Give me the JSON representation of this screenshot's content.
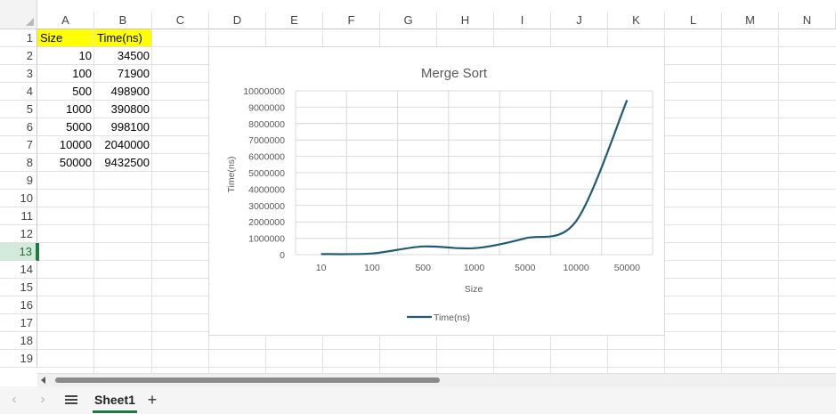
{
  "columns": [
    "A",
    "B",
    "C",
    "D",
    "E",
    "F",
    "G",
    "H",
    "I",
    "J",
    "K",
    "L",
    "M",
    "N"
  ],
  "rows": [
    "1",
    "2",
    "3",
    "4",
    "5",
    "6",
    "7",
    "8",
    "9",
    "10",
    "11",
    "12",
    "13",
    "14",
    "15",
    "16",
    "17",
    "18",
    "19"
  ],
  "selected_row": "13",
  "cells": {
    "A1": "Size",
    "B1": "Time(ns)",
    "A2": "10",
    "B2": "34500",
    "A3": "100",
    "B3": "71900",
    "A4": "500",
    "B4": "498900",
    "A5": "1000",
    "B5": "390800",
    "A6": "5000",
    "B6": "998100",
    "A7": "10000",
    "B7": "2040000",
    "A8": "50000",
    "B8": "9432500"
  },
  "colors": {
    "header_fill": "#ffff00",
    "series_line": "#1f5c73",
    "accent": "#1e7a45"
  },
  "chart_data": {
    "type": "line",
    "title": "Merge Sort",
    "xlabel": "Size",
    "ylabel": "Time(ns)",
    "categories": [
      "10",
      "100",
      "500",
      "1000",
      "5000",
      "10000",
      "50000"
    ],
    "series": [
      {
        "name": "Time(ns)",
        "values": [
          34500,
          71900,
          498900,
          390800,
          998100,
          2040000,
          9432500
        ]
      }
    ],
    "ylim": [
      0,
      10000000
    ],
    "yticks": [
      "0",
      "1000000",
      "2000000",
      "3000000",
      "4000000",
      "5000000",
      "6000000",
      "7000000",
      "8000000",
      "9000000",
      "10000000"
    ],
    "grid": true,
    "smooth": true,
    "legend": "bottom"
  },
  "sheets": [
    {
      "name": "Sheet1",
      "active": true
    }
  ],
  "icons": {
    "prev": "chevron-left-icon",
    "next": "chevron-right-icon",
    "menu": "menu-icon",
    "add": "plus-icon"
  }
}
